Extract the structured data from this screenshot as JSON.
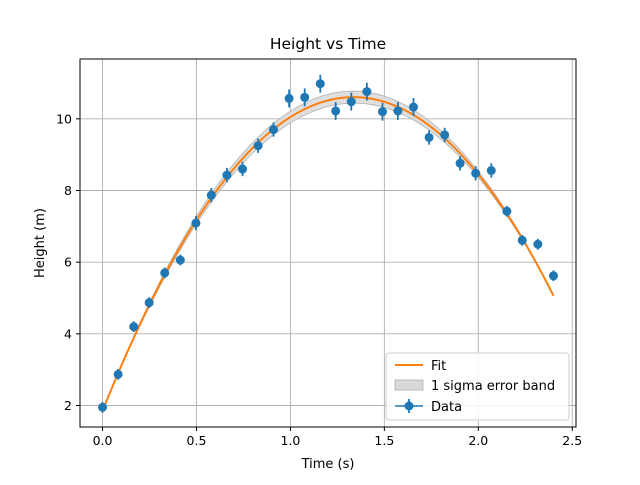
{
  "chart_data": {
    "type": "scatter",
    "title": "Height vs Time",
    "xlabel": "Time (s)",
    "ylabel": "Height (m)",
    "xlim": [
      -0.12,
      2.52
    ],
    "ylim": [
      1.4,
      11.67
    ],
    "xticks": [
      0.0,
      0.5,
      1.0,
      1.5,
      2.0,
      2.5
    ],
    "xtick_labels": [
      "0.0",
      "0.5",
      "1.0",
      "1.5",
      "2.0",
      "2.5"
    ],
    "yticks": [
      2,
      4,
      6,
      8,
      10
    ],
    "ytick_labels": [
      "2",
      "4",
      "6",
      "8",
      "10"
    ],
    "grid": true,
    "legend_position": "lower-right",
    "colors": {
      "data": "#1f77b4",
      "fit": "#ff7f0e",
      "band_fill": "#d9d9d9",
      "band_edge": "#b0b0b0",
      "grid": "#b0b0b0"
    },
    "series": [
      {
        "name": "Data",
        "type": "errorbar",
        "x": [
          0.0,
          0.083,
          0.166,
          0.248,
          0.331,
          0.414,
          0.497,
          0.579,
          0.662,
          0.745,
          0.828,
          0.91,
          0.993,
          1.076,
          1.159,
          1.241,
          1.324,
          1.407,
          1.49,
          1.572,
          1.655,
          1.738,
          1.821,
          1.903,
          1.986,
          2.069,
          2.152,
          2.234,
          2.317,
          2.4
        ],
        "y": [
          1.95,
          2.87,
          4.2,
          4.87,
          5.7,
          6.06,
          7.09,
          7.87,
          8.43,
          8.6,
          9.25,
          9.7,
          10.57,
          10.6,
          10.98,
          10.22,
          10.48,
          10.76,
          10.2,
          10.22,
          10.33,
          9.48,
          9.55,
          8.76,
          8.48,
          8.56,
          7.42,
          6.61,
          6.5,
          5.62
        ],
        "yerr": [
          0.15,
          0.15,
          0.15,
          0.15,
          0.15,
          0.15,
          0.2,
          0.2,
          0.2,
          0.2,
          0.2,
          0.2,
          0.25,
          0.25,
          0.25,
          0.25,
          0.25,
          0.25,
          0.25,
          0.25,
          0.25,
          0.2,
          0.2,
          0.2,
          0.2,
          0.2,
          0.15,
          0.15,
          0.15,
          0.15
        ]
      },
      {
        "name": "Fit",
        "type": "line",
        "model": "quadratic",
        "coefficients": {
          "a": -4.9,
          "b": 13.1,
          "c": 1.85
        },
        "x_range": [
          0.0,
          2.4
        ]
      },
      {
        "name": "1 sigma error band",
        "type": "band",
        "half_width_max": 0.17
      }
    ],
    "legend": [
      "Fit",
      "1 sigma error band",
      "Data"
    ]
  }
}
